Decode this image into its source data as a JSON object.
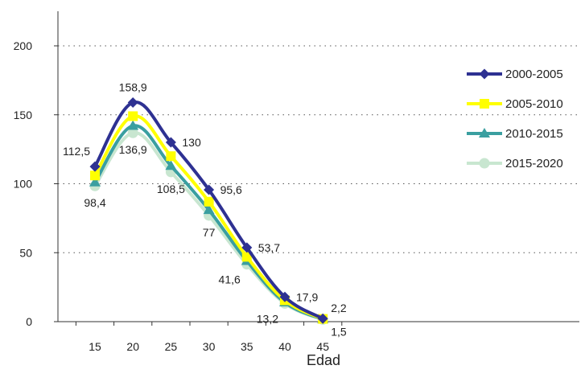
{
  "chart_data": {
    "type": "line",
    "title": "",
    "xlabel": "Edad",
    "ylabel": "",
    "x": [
      15,
      20,
      25,
      30,
      35,
      40,
      45
    ],
    "x_tick_labels": [
      "15",
      "20",
      "25",
      "30",
      "35",
      "40",
      "45"
    ],
    "ylim": [
      0,
      200
    ],
    "y_ticks": [
      0,
      50,
      100,
      150,
      200
    ],
    "y_tick_labels": [
      "0",
      "50",
      "100",
      "150",
      "200"
    ],
    "grid": "horizontal dotted",
    "legend_position": "right",
    "series": [
      {
        "name": "2000-2005",
        "color": "#2e3192",
        "marker": "diamond",
        "values": [
          112.5,
          158.9,
          130,
          95.6,
          53.7,
          17.9,
          2.2
        ]
      },
      {
        "name": "2005-2010",
        "color": "#ffff00",
        "marker": "square",
        "values": [
          106,
          149,
          120,
          87,
          47,
          15.5,
          2.0
        ]
      },
      {
        "name": "2010-2015",
        "color": "#3a9fa0",
        "marker": "triangle",
        "values": [
          101,
          142,
          113,
          81,
          44,
          14,
          1.7
        ]
      },
      {
        "name": "2015-2020",
        "color": "#c8e6d0",
        "marker": "circle",
        "values": [
          98.4,
          136.9,
          108.5,
          77,
          41.6,
          13.2,
          1.5
        ]
      }
    ],
    "data_labels": [
      {
        "series": 0,
        "index": 0,
        "text": "112,5",
        "pos": "left-above"
      },
      {
        "series": 0,
        "index": 1,
        "text": "158,9",
        "pos": "above"
      },
      {
        "series": 0,
        "index": 2,
        "text": "130",
        "pos": "right"
      },
      {
        "series": 0,
        "index": 3,
        "text": "95,6",
        "pos": "right"
      },
      {
        "series": 0,
        "index": 4,
        "text": "53,7",
        "pos": "right"
      },
      {
        "series": 0,
        "index": 5,
        "text": "17,9",
        "pos": "right"
      },
      {
        "series": 0,
        "index": 6,
        "text": "2,2",
        "pos": "right-above"
      },
      {
        "series": 3,
        "index": 0,
        "text": "98,4",
        "pos": "below"
      },
      {
        "series": 3,
        "index": 1,
        "text": "136,9",
        "pos": "below"
      },
      {
        "series": 3,
        "index": 2,
        "text": "108,5",
        "pos": "below"
      },
      {
        "series": 3,
        "index": 3,
        "text": "77",
        "pos": "below"
      },
      {
        "series": 3,
        "index": 4,
        "text": "41,6",
        "pos": "left-below"
      },
      {
        "series": 3,
        "index": 5,
        "text": "13,2",
        "pos": "left-below"
      },
      {
        "series": 3,
        "index": 6,
        "text": "1,5",
        "pos": "right-below"
      }
    ]
  }
}
